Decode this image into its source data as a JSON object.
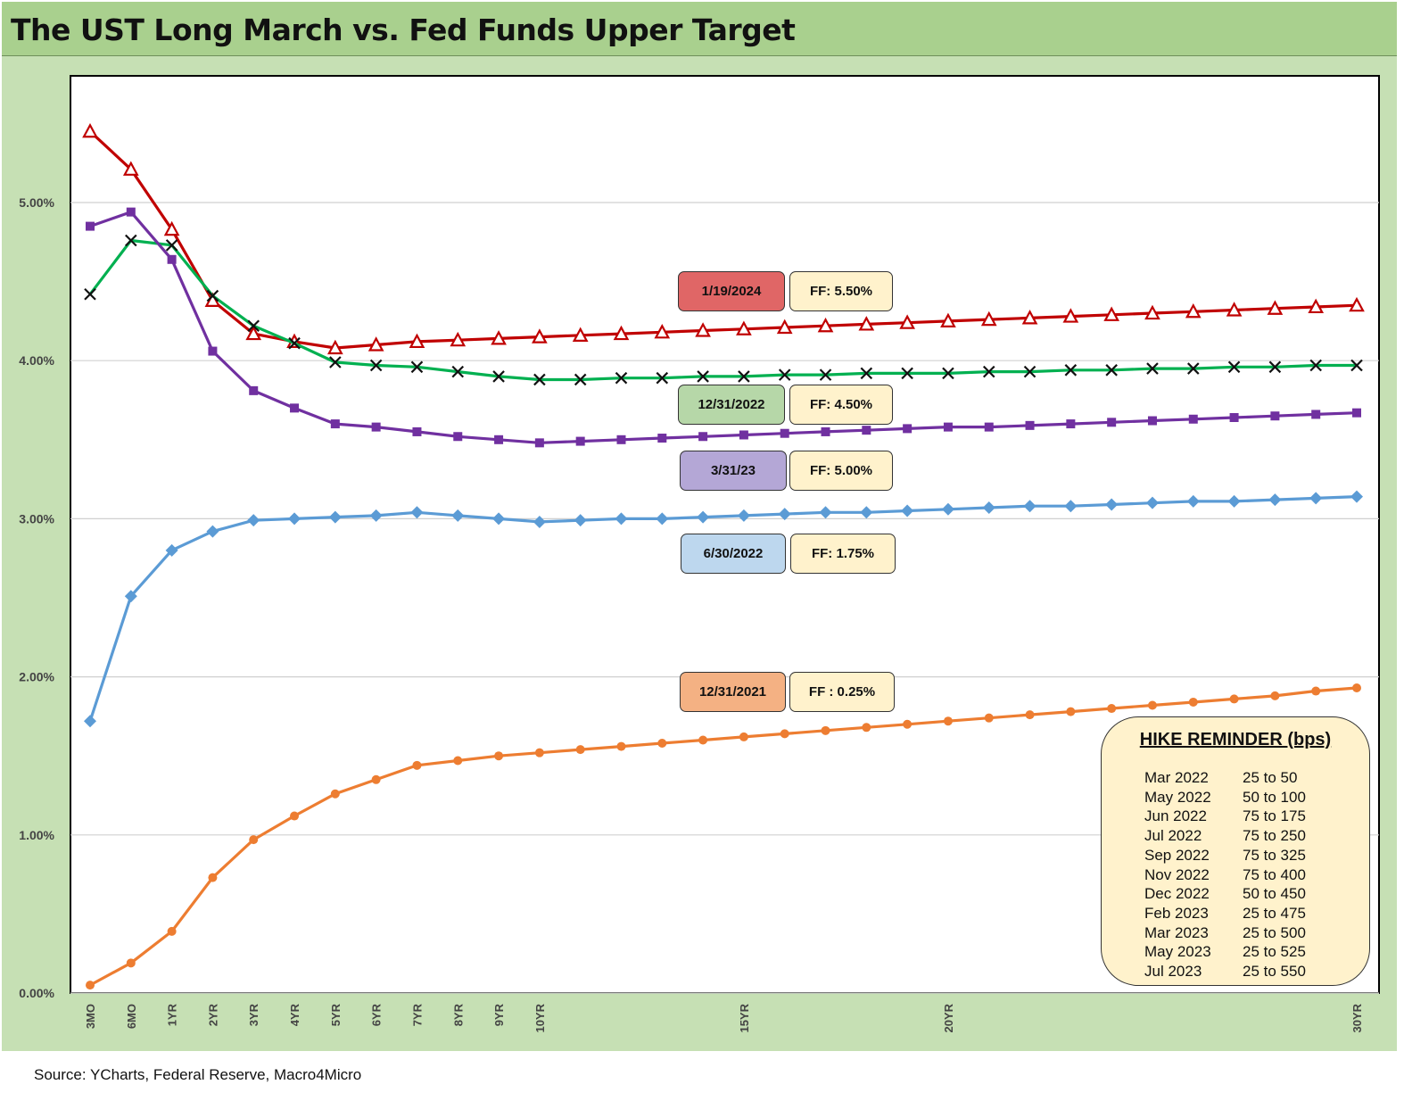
{
  "title": "The UST Long March vs. Fed Funds Upper Target",
  "source": "Source: YCharts, Federal Reserve, Macro4Micro",
  "annotations": [
    {
      "date": "1/19/2024",
      "ff": "FF: 5.50%",
      "color": "#e06666"
    },
    {
      "date": "12/31/2022",
      "ff": "FF: 4.50%",
      "color": "#b6d7a8"
    },
    {
      "date": "3/31/23",
      "ff": "FF: 5.00%",
      "color": "#b4a7d6"
    },
    {
      "date": "6/30/2022",
      "ff": "FF: 1.75%",
      "color": "#bdd7ee"
    },
    {
      "date": "12/31/2021",
      "ff": "FF : 0.25%",
      "color": "#f4b183"
    }
  ],
  "hike_reminder": {
    "title": "HIKE REMINDER (bps)",
    "rows": [
      {
        "month": "Mar 2022",
        "hike": "25 to 50"
      },
      {
        "month": "May 2022",
        "hike": "50 to 100"
      },
      {
        "month": "Jun 2022",
        "hike": "75 to 175"
      },
      {
        "month": "Jul 2022",
        "hike": "75 to 250"
      },
      {
        "month": "Sep 2022",
        "hike": "75 to 325"
      },
      {
        "month": "Nov 2022",
        "hike": "75 to 400"
      },
      {
        "month": "Dec 2022",
        "hike": "50 to 450"
      },
      {
        "month": "Feb 2023",
        "hike": "25 to 475"
      },
      {
        "month": "Mar 2023",
        "hike": "25 to 500"
      },
      {
        "month": "May 2023",
        "hike": "25 to 525"
      },
      {
        "month": "Jul 2023",
        "hike": "25 to 550"
      }
    ]
  },
  "chart_data": {
    "type": "line",
    "title": "The UST Long March vs. Fed Funds Upper Target",
    "y_ticks": [
      "0.00%",
      "1.00%",
      "2.00%",
      "3.00%",
      "4.00%",
      "5.00%"
    ],
    "ylim": [
      0,
      5.6
    ],
    "x_ticks": [
      {
        "index": 0,
        "label": "3MO"
      },
      {
        "index": 1,
        "label": "6MO"
      },
      {
        "index": 2,
        "label": "1YR"
      },
      {
        "index": 3,
        "label": "2YR"
      },
      {
        "index": 4,
        "label": "3YR"
      },
      {
        "index": 5,
        "label": "4YR"
      },
      {
        "index": 6,
        "label": "5YR"
      },
      {
        "index": 7,
        "label": "6YR"
      },
      {
        "index": 8,
        "label": "7YR"
      },
      {
        "index": 9,
        "label": "8YR"
      },
      {
        "index": 10,
        "label": "9YR"
      },
      {
        "index": 11,
        "label": "10YR"
      },
      {
        "index": 16,
        "label": "15YR"
      },
      {
        "index": 21,
        "label": "20YR"
      },
      {
        "index": 31,
        "label": "30YR"
      }
    ],
    "series": [
      {
        "name": "1/19/2024",
        "color": "#c00000",
        "marker": "triangle",
        "values": [
          5.45,
          5.21,
          4.83,
          4.38,
          4.17,
          4.12,
          4.08,
          4.1,
          4.12,
          4.13,
          4.14,
          4.15,
          4.16,
          4.17,
          4.18,
          4.19,
          4.2,
          4.21,
          4.22,
          4.23,
          4.24,
          4.25,
          4.26,
          4.27,
          4.28,
          4.29,
          4.3,
          4.31,
          4.32,
          4.33,
          4.34,
          4.35
        ]
      },
      {
        "name": "12/31/2022",
        "color": "#00b050",
        "marker": "x",
        "values": [
          4.42,
          4.76,
          4.73,
          4.41,
          4.22,
          4.11,
          3.99,
          3.97,
          3.96,
          3.93,
          3.9,
          3.88,
          3.88,
          3.89,
          3.89,
          3.9,
          3.9,
          3.91,
          3.91,
          3.92,
          3.92,
          3.92,
          3.93,
          3.93,
          3.94,
          3.94,
          3.95,
          3.95,
          3.96,
          3.96,
          3.97,
          3.97
        ]
      },
      {
        "name": "3/31/23",
        "color": "#7030a0",
        "marker": "square",
        "values": [
          4.85,
          4.94,
          4.64,
          4.06,
          3.81,
          3.7,
          3.6,
          3.58,
          3.55,
          3.52,
          3.5,
          3.48,
          3.49,
          3.5,
          3.51,
          3.52,
          3.53,
          3.54,
          3.55,
          3.56,
          3.57,
          3.58,
          3.58,
          3.59,
          3.6,
          3.61,
          3.62,
          3.63,
          3.64,
          3.65,
          3.66,
          3.67
        ]
      },
      {
        "name": "6/30/2022",
        "color": "#5b9bd5",
        "marker": "diamond",
        "values": [
          1.72,
          2.51,
          2.8,
          2.92,
          2.99,
          3.0,
          3.01,
          3.02,
          3.04,
          3.02,
          3.0,
          2.98,
          2.99,
          3.0,
          3.0,
          3.01,
          3.02,
          3.03,
          3.04,
          3.04,
          3.05,
          3.06,
          3.07,
          3.08,
          3.08,
          3.09,
          3.1,
          3.11,
          3.11,
          3.12,
          3.13,
          3.14
        ]
      },
      {
        "name": "12/31/2021",
        "color": "#ed7d31",
        "marker": "circle",
        "values": [
          0.05,
          0.19,
          0.39,
          0.73,
          0.97,
          1.12,
          1.26,
          1.35,
          1.44,
          1.47,
          1.5,
          1.52,
          1.54,
          1.56,
          1.58,
          1.6,
          1.62,
          1.64,
          1.66,
          1.68,
          1.7,
          1.72,
          1.74,
          1.76,
          1.78,
          1.8,
          1.82,
          1.84,
          1.86,
          1.88,
          1.91,
          1.93
        ]
      }
    ],
    "grid": true,
    "legend": "none"
  }
}
